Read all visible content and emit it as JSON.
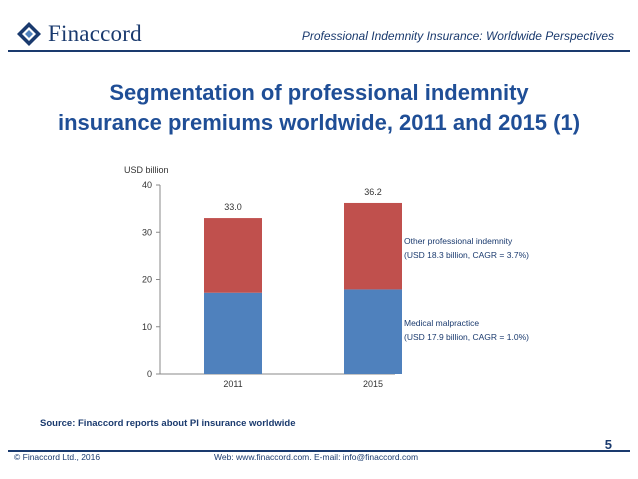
{
  "header": {
    "logo_text": "Finaccord",
    "report_title": "Professional Indemnity Insurance: Worldwide Perspectives"
  },
  "slide": {
    "title_line1": "Segmentation of professional indemnity",
    "title_line2": "insurance premiums worldwide, 2011 and 2015 (1)"
  },
  "chart_data": {
    "type": "bar",
    "stacked": true,
    "ylabel": "USD billion",
    "ylim": [
      0,
      40
    ],
    "yticks": [
      0,
      10,
      20,
      30,
      40
    ],
    "categories": [
      "2011",
      "2015"
    ],
    "totals": [
      "33.0",
      "36.2"
    ],
    "series": [
      {
        "values": [
          17.2,
          17.9
        ],
        "color": "#4f81bd",
        "legend_line1": "Medical malpractice",
        "legend_line2": "(USD 17.9 billion, CAGR = 1.0%)"
      },
      {
        "values": [
          15.8,
          18.3
        ],
        "color": "#c0504d",
        "legend_line1": "Other professional indemnity",
        "legend_line2": "(USD 18.3 billion, CAGR = 3.7%)"
      }
    ],
    "grid": false
  },
  "footer": {
    "source": "Source: Finaccord reports about PI insurance worldwide",
    "page_number": "5",
    "copyright": "© Finaccord Ltd., 2016",
    "contact": "Web: www.finaccord.com. E-mail: info@finaccord.com"
  },
  "colors": {
    "brand_navy": "#1a3a6e",
    "title_blue": "#1f4e96",
    "bar_blue": "#4f81bd",
    "bar_red": "#c0504d"
  }
}
